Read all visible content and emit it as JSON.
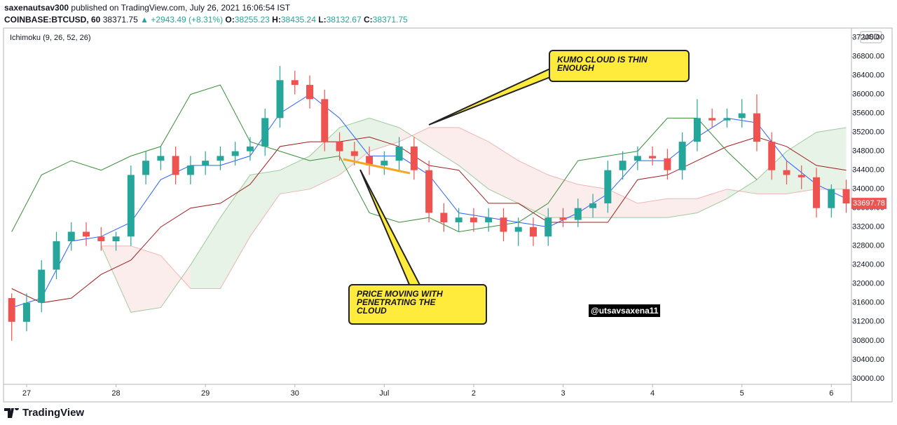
{
  "header": {
    "publisher": "saxenautsav300",
    "published": "published on TradingView.com, July 26, 2021 16:06:54 IST",
    "symbol": "COINBASE:BTCUSD, 60",
    "last": "38371.75",
    "change": "▲ +2943.49 (+8.31%)",
    "ohlc": [
      {
        "label": "O:",
        "value": "38255.23"
      },
      {
        "label": "H:",
        "value": "38435.24"
      },
      {
        "label": "L:",
        "value": "38132.67"
      },
      {
        "label": "C:",
        "value": "38371.75"
      }
    ]
  },
  "chart_data": {
    "type": "candlestick",
    "indicator": "Ichimoku (9, 26, 52, 26)",
    "currency": "USD",
    "up_color": "#26a69a",
    "down_color": "#ef5350",
    "x": [
      -4,
      0,
      4,
      8,
      12,
      16,
      20,
      24,
      28,
      32,
      36,
      40,
      44,
      48,
      52,
      56,
      60,
      64,
      68,
      72,
      76,
      80,
      84,
      88,
      92,
      96,
      100,
      104,
      108,
      112,
      116,
      120,
      124,
      128,
      132,
      136,
      140,
      144,
      148,
      152,
      156,
      160,
      164,
      168,
      172,
      176,
      180,
      184,
      188,
      192,
      196,
      200,
      204,
      208,
      212,
      216,
      220
    ],
    "open": [
      31700,
      31200,
      31600,
      32300,
      32900,
      33100,
      33000,
      32900,
      33000,
      34300,
      34600,
      34700,
      34300,
      34500,
      34600,
      34700,
      34800,
      34900,
      35500,
      36300,
      36200,
      35900,
      35000,
      34800,
      34700,
      34500,
      34600,
      34900,
      34400,
      33500,
      33300,
      33400,
      33300,
      33400,
      33100,
      33200,
      33000,
      33400,
      33350,
      33600,
      33700,
      34400,
      34600,
      34700,
      34650,
      34400,
      35000,
      35500,
      35450,
      35500,
      35600,
      35000,
      34400,
      34300,
      34250,
      33600,
      34000
    ],
    "high": [
      31800,
      31800,
      32500,
      33100,
      33300,
      33300,
      33200,
      33100,
      34500,
      34800,
      34900,
      34900,
      34700,
      34800,
      34900,
      35000,
      35100,
      35700,
      36600,
      36500,
      36400,
      36100,
      35200,
      35000,
      34900,
      34800,
      35100,
      35100,
      34600,
      33700,
      33600,
      33600,
      33600,
      33600,
      33400,
      33400,
      33600,
      33600,
      33800,
      33900,
      34600,
      34800,
      34900,
      34900,
      34850,
      35200,
      35900,
      35700,
      35700,
      35900,
      36000,
      35200,
      34600,
      34500,
      34450,
      34100,
      34200
    ],
    "low": [
      30800,
      31000,
      31400,
      32100,
      32700,
      32800,
      32700,
      32700,
      32800,
      34100,
      34400,
      34100,
      34100,
      34300,
      34400,
      34500,
      34600,
      34700,
      35300,
      36000,
      35700,
      34800,
      34600,
      34500,
      34300,
      34300,
      34400,
      34200,
      33300,
      33100,
      33100,
      33100,
      33100,
      32900,
      32800,
      32800,
      32800,
      33200,
      33200,
      33400,
      33500,
      34200,
      34400,
      34500,
      34200,
      34200,
      34800,
      35300,
      35300,
      35300,
      34800,
      34200,
      34100,
      34000,
      33400,
      33400,
      33500
    ],
    "close": [
      31200,
      31600,
      32300,
      32900,
      33100,
      33000,
      32900,
      33000,
      34300,
      34600,
      34700,
      34300,
      34500,
      34600,
      34700,
      34800,
      34900,
      35500,
      36300,
      36200,
      35900,
      35000,
      34800,
      34700,
      34500,
      34600,
      34900,
      34400,
      33500,
      33300,
      33400,
      33300,
      33400,
      33100,
      33200,
      33000,
      33400,
      33350,
      33600,
      33700,
      34400,
      34600,
      34700,
      34650,
      34400,
      35000,
      35500,
      35450,
      35500,
      35600,
      35000,
      34400,
      34300,
      34250,
      33600,
      34000,
      33697.78
    ],
    "xlim": [
      -6.2,
      221.4
    ],
    "ylim": [
      29880,
      37400
    ],
    "xticks": [
      {
        "value": 0,
        "label": "27"
      },
      {
        "value": 24,
        "label": "28"
      },
      {
        "value": 48,
        "label": "29"
      },
      {
        "value": 72,
        "label": "30"
      },
      {
        "value": 96,
        "label": "Jul"
      },
      {
        "value": 120,
        "label": "2"
      },
      {
        "value": 144,
        "label": "3"
      },
      {
        "value": 168,
        "label": "4"
      },
      {
        "value": 192,
        "label": "5"
      },
      {
        "value": 216,
        "label": "6"
      }
    ],
    "yticks": [
      {
        "value": 30000,
        "label": "30000.00"
      },
      {
        "value": 30400,
        "label": "30400.00"
      },
      {
        "value": 30800,
        "label": "30800.00"
      },
      {
        "value": 31200,
        "label": "31200.00"
      },
      {
        "value": 31600,
        "label": "31600.00"
      },
      {
        "value": 32000,
        "label": "32000.00"
      },
      {
        "value": 32400,
        "label": "32400.00"
      },
      {
        "value": 32800,
        "label": "32800.00"
      },
      {
        "value": 33200,
        "label": "33200.00"
      },
      {
        "value": 33600,
        "label": "33600.00"
      },
      {
        "value": 34000,
        "label": "34000.00"
      },
      {
        "value": 34400,
        "label": "34400.00"
      },
      {
        "value": 34800,
        "label": "34800.00"
      },
      {
        "value": 35200,
        "label": "35200.00"
      },
      {
        "value": 35600,
        "label": "35600.00"
      },
      {
        "value": 36000,
        "label": "36000.00"
      },
      {
        "value": 36400,
        "label": "36400.00"
      },
      {
        "value": 36800,
        "label": "36800.00"
      },
      {
        "value": 37200,
        "label": "37200.00"
      }
    ],
    "grid": false,
    "cloud": {
      "x": [
        20,
        28,
        36,
        44,
        52,
        60,
        68,
        76,
        84,
        92,
        100,
        108,
        116,
        124,
        132,
        140,
        148,
        156,
        164,
        172,
        180,
        188,
        196,
        204,
        212,
        220
      ],
      "span_a": [
        32800,
        31400,
        31500,
        32400,
        33400,
        34300,
        34400,
        34700,
        35300,
        35500,
        35300,
        34900,
        34500,
        34000,
        33700,
        33400,
        33400,
        33400,
        33400,
        33400,
        33500,
        33800,
        34200,
        34800,
        35200,
        35300
      ],
      "span_b": [
        32800,
        32800,
        32600,
        31900,
        31900,
        33000,
        33900,
        34000,
        34300,
        34800,
        35000,
        35300,
        35300,
        35000,
        34600,
        34300,
        34100,
        34000,
        33700,
        33800,
        33800,
        34000,
        33900,
        33900,
        34000,
        34000
      ],
      "up_color": "#43a047",
      "down_color": "#e57373"
    },
    "lines": [
      {
        "color": "#2962ff",
        "x": [
          -4,
          4,
          12,
          20,
          28,
          36,
          44,
          52,
          60,
          68,
          76,
          84,
          92,
          100,
          108,
          116,
          124,
          132,
          140,
          148,
          156,
          164,
          172,
          180,
          188,
          196,
          204,
          212,
          220
        ],
        "values": [
          31500,
          31700,
          32900,
          33000,
          33300,
          34200,
          34500,
          34500,
          34700,
          35600,
          36000,
          35500,
          34700,
          34700,
          34300,
          33500,
          33400,
          33300,
          33200,
          33500,
          33900,
          34600,
          34600,
          35100,
          35500,
          35400,
          34600,
          34100,
          33800
        ]
      },
      {
        "color": "#a11d1d",
        "x": [
          -4,
          4,
          12,
          20,
          28,
          36,
          44,
          52,
          60,
          68,
          76,
          84,
          92,
          100,
          108,
          116,
          124,
          132,
          140,
          148,
          156,
          164,
          172,
          180,
          188,
          196,
          204,
          212,
          220
        ],
        "values": [
          31900,
          31600,
          31700,
          32200,
          32500,
          33200,
          33600,
          33700,
          34100,
          34900,
          35000,
          35000,
          35100,
          34900,
          34500,
          34400,
          33700,
          33700,
          33300,
          33300,
          33300,
          34200,
          34300,
          34600,
          34900,
          35100,
          34900,
          34500,
          34400
        ]
      },
      {
        "color": "#388e3c",
        "x": [
          -4,
          4,
          12,
          20,
          28,
          36,
          44,
          52,
          60,
          68,
          76,
          84,
          92,
          100,
          108,
          116,
          124,
          132,
          140,
          148,
          156,
          164,
          172,
          180,
          188,
          196
        ],
        "values": [
          33100,
          34300,
          34600,
          34400,
          34700,
          34900,
          36000,
          36200,
          35000,
          34800,
          34600,
          34700,
          33500,
          33300,
          33400,
          33100,
          33200,
          33300,
          33700,
          34600,
          34700,
          34800,
          35500,
          35500,
          34800,
          34200
        ]
      }
    ],
    "annotations": [
      {
        "text": "KUMO CLOUD IS THIN ENOUGH"
      },
      {
        "text": "PRICE MOVING WITH PENETRATING THE CLOUD"
      }
    ],
    "watermark": "@utsavsaxena11"
  },
  "footer": {
    "brand": "TradingView"
  }
}
